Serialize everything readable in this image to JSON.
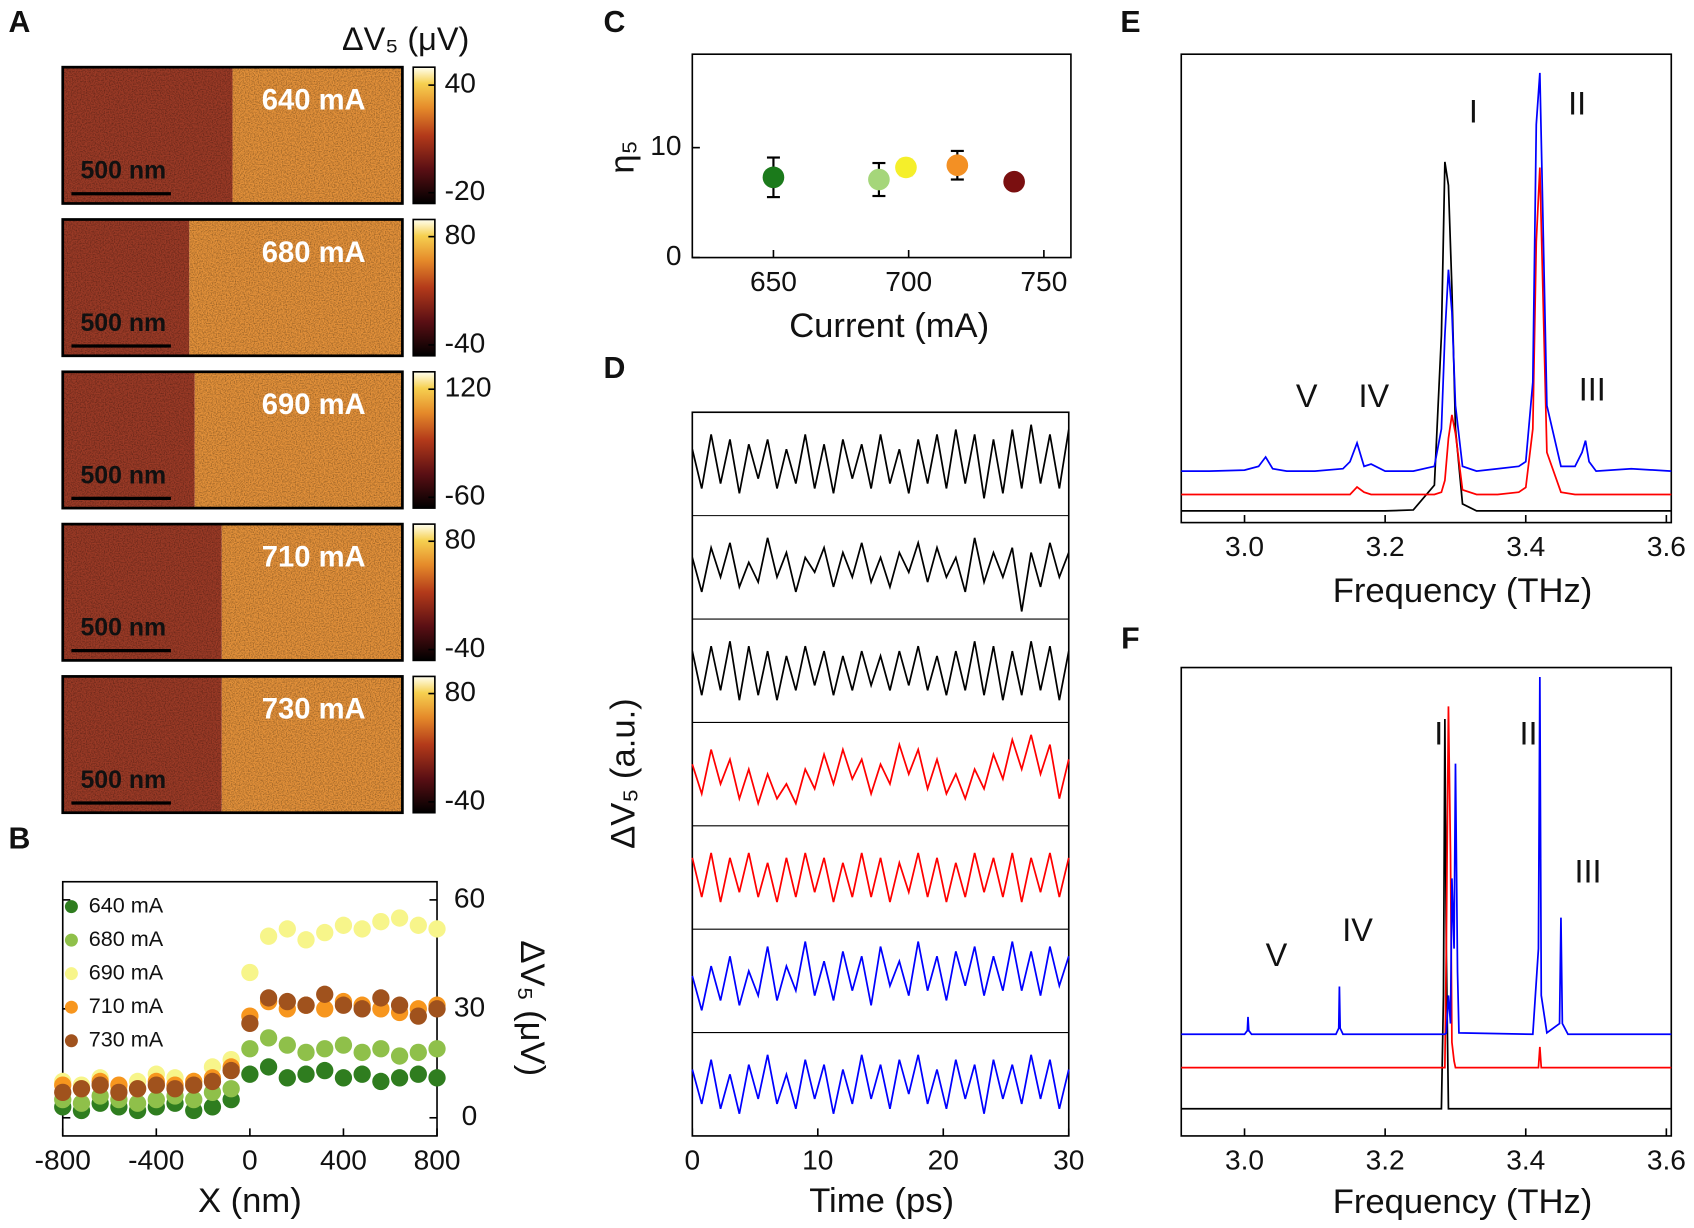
{
  "chart_data": [
    {
      "panel": "A",
      "type": "image",
      "colorbar_title": "ΔV₅ (μV)",
      "maps": [
        {
          "label": "640 mA",
          "scale_bar": "500 nm",
          "clim": [
            -26,
            50
          ],
          "cticks": [
            -20,
            40
          ]
        },
        {
          "label": "680 mA",
          "scale_bar": "500 nm",
          "clim": [
            -52,
            99
          ],
          "cticks": [
            -40,
            80
          ]
        },
        {
          "label": "690 mA",
          "scale_bar": "500 nm",
          "clim": [
            -78,
            149
          ],
          "cticks": [
            -60,
            120
          ]
        },
        {
          "label": "710 mA",
          "scale_bar": "500 nm",
          "clim": [
            -52,
            99
          ],
          "cticks": [
            -40,
            80
          ]
        },
        {
          "label": "730 mA",
          "scale_bar": "500 nm",
          "clim": [
            -52,
            99
          ],
          "cticks": [
            -40,
            80
          ]
        }
      ]
    },
    {
      "panel": "B",
      "type": "scatter",
      "xlabel": "X (nm)",
      "ylabel": "ΔV₅ (μV)",
      "x": [
        -800,
        -720,
        -640,
        -560,
        -480,
        -400,
        -320,
        -240,
        -160,
        -80,
        0,
        80,
        160,
        240,
        320,
        400,
        480,
        560,
        640,
        720,
        800
      ],
      "series": [
        {
          "name": "640 mA",
          "color": "#2f7d1f",
          "values": [
            3,
            2,
            4,
            3,
            2,
            3,
            4,
            2,
            3,
            5,
            12,
            14,
            11,
            12,
            13,
            11,
            12,
            10,
            11,
            12,
            11
          ]
        },
        {
          "name": "680 mA",
          "color": "#8fc04a",
          "values": [
            5,
            4,
            6,
            5,
            4,
            5,
            6,
            5,
            7,
            8,
            19,
            22,
            20,
            18,
            19,
            20,
            18,
            19,
            17,
            18,
            19
          ]
        },
        {
          "name": "690 mA",
          "color": "#f7f58a",
          "values": [
            10,
            9,
            11,
            8,
            10,
            12,
            11,
            10,
            14,
            16,
            40,
            50,
            52,
            49,
            51,
            53,
            52,
            54,
            55,
            53,
            52
          ]
        },
        {
          "name": "710 mA",
          "color": "#f7961e",
          "values": [
            9,
            8,
            10,
            9,
            8,
            10,
            9,
            10,
            11,
            14,
            28,
            32,
            30,
            31,
            30,
            32,
            31,
            30,
            29,
            30,
            31
          ]
        },
        {
          "name": "730 mA",
          "color": "#a0521d",
          "values": [
            7,
            8,
            9,
            7,
            8,
            9,
            8,
            9,
            10,
            13,
            26,
            33,
            32,
            31,
            34,
            31,
            30,
            33,
            31,
            28,
            30
          ]
        }
      ],
      "xlim": [
        -800,
        800
      ],
      "xticks": [
        -800,
        -400,
        0,
        400,
        800
      ],
      "ylim": [
        -5,
        65
      ],
      "yticks": [
        0,
        30,
        60
      ],
      "y_axis_side": "right",
      "legend": "upper left"
    },
    {
      "panel": "C",
      "type": "errorbar",
      "xlabel": "Current (mA)",
      "ylabel": "η₅",
      "x": [
        650,
        689,
        699,
        718,
        739
      ],
      "values": [
        7.3,
        7.1,
        8.2,
        8.4,
        6.9
      ],
      "errors": [
        1.8,
        1.5,
        0.7,
        1.3,
        0.5
      ],
      "colors": [
        "#1b7a1b",
        "#a5d67a",
        "#f5ef2a",
        "#f39024",
        "#7a0f10"
      ],
      "xlim": [
        620,
        760
      ],
      "xticks": [
        650,
        700,
        750
      ],
      "ylim": [
        0,
        18.5
      ],
      "yticks": [
        0,
        10
      ]
    },
    {
      "panel": "D",
      "type": "strips",
      "xlabel": "Time (ps)",
      "ylabel": "ΔV₅ (a.u.)",
      "x": [
        0,
        0.75,
        1.5,
        2.25,
        3,
        3.75,
        4.5,
        5.25,
        6,
        6.75,
        7.5,
        8.25,
        9,
        9.75,
        10.5,
        11.25,
        12,
        12.75,
        13.5,
        14.25,
        15,
        15.75,
        16.5,
        17.25,
        18,
        18.75,
        19.5,
        20.25,
        21,
        21.75,
        22.5,
        23.25,
        24,
        24.75,
        25.5,
        26.25,
        27,
        27.75,
        28.5,
        29.25,
        30
      ],
      "xlim": [
        0,
        30
      ],
      "xticks": [
        0,
        10,
        20,
        30
      ],
      "ylim": [
        -1,
        1
      ],
      "series": [
        {
          "color": "#000000",
          "values": [
            0.3,
            -0.5,
            0.6,
            -0.4,
            0.5,
            -0.6,
            0.4,
            -0.3,
            0.5,
            -0.5,
            0.3,
            -0.4,
            0.6,
            -0.5,
            0.4,
            -0.6,
            0.5,
            -0.3,
            0.4,
            -0.5,
            0.6,
            -0.4,
            0.3,
            -0.6,
            0.5,
            -0.4,
            0.6,
            -0.5,
            0.7,
            -0.4,
            0.6,
            -0.7,
            0.5,
            -0.6,
            0.7,
            -0.5,
            0.8,
            -0.4,
            0.6,
            -0.5,
            0.7
          ]
        },
        {
          "color": "#000000",
          "values": [
            0.2,
            -0.5,
            0.4,
            -0.2,
            0.5,
            -0.4,
            0.1,
            -0.3,
            0.6,
            -0.2,
            0.3,
            -0.5,
            0.2,
            -0.1,
            0.4,
            -0.4,
            0.3,
            -0.2,
            0.5,
            -0.3,
            0.2,
            -0.4,
            0.3,
            -0.1,
            0.5,
            -0.3,
            0.4,
            -0.2,
            0.2,
            -0.5,
            0.6,
            -0.3,
            0.3,
            -0.2,
            0.4,
            -0.9,
            0.3,
            -0.4,
            0.5,
            -0.2,
            0.3
          ]
        },
        {
          "color": "#000000",
          "values": [
            0.4,
            -0.5,
            0.5,
            -0.4,
            0.6,
            -0.6,
            0.5,
            -0.5,
            0.4,
            -0.6,
            0.3,
            -0.4,
            0.5,
            -0.3,
            0.4,
            -0.5,
            0.3,
            -0.4,
            0.4,
            -0.3,
            0.3,
            -0.4,
            0.4,
            -0.3,
            0.5,
            -0.4,
            0.3,
            -0.5,
            0.4,
            -0.4,
            0.6,
            -0.5,
            0.5,
            -0.6,
            0.4,
            -0.5,
            0.6,
            -0.4,
            0.5,
            -0.6,
            0.4
          ]
        },
        {
          "color": "#ff0000",
          "values": [
            0.2,
            -0.4,
            0.5,
            -0.2,
            0.3,
            -0.5,
            0.1,
            -0.6,
            0.0,
            -0.5,
            -0.2,
            -0.6,
            0.1,
            -0.3,
            0.4,
            -0.2,
            0.5,
            -0.1,
            0.3,
            -0.4,
            0.2,
            -0.2,
            0.6,
            0.0,
            0.5,
            -0.3,
            0.3,
            -0.4,
            0.0,
            -0.5,
            0.1,
            -0.3,
            0.4,
            -0.1,
            0.7,
            0.1,
            0.8,
            0.0,
            0.6,
            -0.5,
            0.3
          ]
        },
        {
          "color": "#ff0000",
          "values": [
            0.4,
            -0.4,
            0.5,
            -0.5,
            0.4,
            -0.3,
            0.5,
            -0.4,
            0.3,
            -0.5,
            0.4,
            -0.4,
            0.5,
            -0.3,
            0.4,
            -0.5,
            0.3,
            -0.4,
            0.5,
            -0.4,
            0.4,
            -0.5,
            0.3,
            -0.3,
            0.5,
            -0.4,
            0.4,
            -0.5,
            0.3,
            -0.4,
            0.5,
            -0.3,
            0.4,
            -0.4,
            0.5,
            -0.5,
            0.4,
            -0.3,
            0.5,
            -0.4,
            0.4
          ]
        },
        {
          "color": "#0000ff",
          "values": [
            0.1,
            -0.6,
            0.3,
            -0.4,
            0.5,
            -0.5,
            0.2,
            -0.3,
            0.7,
            -0.4,
            0.3,
            -0.2,
            0.8,
            -0.3,
            0.4,
            -0.4,
            0.6,
            -0.2,
            0.5,
            -0.5,
            0.7,
            -0.1,
            0.4,
            -0.3,
            0.8,
            -0.2,
            0.5,
            -0.4,
            0.6,
            -0.1,
            0.7,
            -0.3,
            0.5,
            -0.2,
            0.8,
            -0.2,
            0.6,
            -0.3,
            0.7,
            -0.1,
            0.5
          ]
        },
        {
          "color": "#0000ff",
          "values": [
            0.3,
            -0.4,
            0.5,
            -0.5,
            0.2,
            -0.6,
            0.4,
            -0.3,
            0.6,
            -0.4,
            0.2,
            -0.5,
            0.5,
            -0.3,
            0.4,
            -0.6,
            0.3,
            -0.4,
            0.6,
            -0.3,
            0.4,
            -0.5,
            0.5,
            -0.2,
            0.6,
            -0.4,
            0.3,
            -0.5,
            0.5,
            -0.3,
            0.4,
            -0.6,
            0.5,
            -0.3,
            0.4,
            -0.4,
            0.6,
            -0.3,
            0.5,
            -0.5,
            0.3
          ]
        }
      ]
    },
    {
      "panel": "E",
      "type": "line",
      "xlabel": "Frequency (THz)",
      "x": [
        2.91,
        2.95,
        3.0,
        3.02,
        3.03,
        3.04,
        3.06,
        3.1,
        3.14,
        3.15,
        3.16,
        3.17,
        3.18,
        3.2,
        3.24,
        3.27,
        3.28,
        3.285,
        3.29,
        3.295,
        3.3,
        3.31,
        3.33,
        3.36,
        3.39,
        3.4,
        3.41,
        3.415,
        3.42,
        3.43,
        3.45,
        3.47,
        3.48,
        3.485,
        3.49,
        3.5,
        3.55,
        3.607
      ],
      "xlim": [
        2.91,
        3.607
      ],
      "xticks": [
        {
          "value": 3,
          "label": "3.0"
        },
        3.2,
        3.4,
        3.6
      ],
      "ylim": [
        0,
        100
      ],
      "series": [
        {
          "color": "#000000",
          "values": [
            2.5,
            2.5,
            2.5,
            2.5,
            2.5,
            2.5,
            2.5,
            2.5,
            2.5,
            2.5,
            2.5,
            2.5,
            2.5,
            2.5,
            2.7,
            8,
            40,
            77,
            72,
            50,
            20,
            4,
            2.5,
            2.5,
            2.5,
            2.5,
            2.5,
            2.5,
            2.5,
            2.5,
            2.5,
            2.5,
            2.5,
            2.5,
            2.5,
            2.5,
            2.5,
            2.5
          ]
        },
        {
          "color": "#ff0000",
          "values": [
            6,
            6,
            6,
            6,
            6,
            6,
            6,
            6,
            6,
            6,
            7.6,
            6.5,
            6,
            6,
            6,
            6,
            6.5,
            9,
            18,
            23,
            19,
            7,
            6,
            6,
            6.5,
            7.5,
            20,
            60,
            75.8,
            15,
            6.5,
            6,
            6,
            6,
            6,
            6,
            6,
            6
          ]
        },
        {
          "color": "#0000ff",
          "values": [
            11,
            11,
            11.2,
            12,
            14,
            11.5,
            11,
            11,
            11.5,
            13,
            17,
            12,
            12.5,
            11,
            11,
            12,
            20,
            40,
            54,
            45,
            25,
            12,
            11,
            11.5,
            12,
            13,
            30,
            85,
            96,
            25,
            12,
            12,
            15,
            17.5,
            13,
            11,
            11.5,
            11
          ]
        }
      ],
      "annotations": [
        "V",
        "IV",
        "I",
        "II",
        "III"
      ]
    },
    {
      "panel": "F",
      "type": "line",
      "xlabel": "Frequency (THz)",
      "x": [
        2.91,
        3.0,
        3.004,
        3.005,
        3.006,
        3.01,
        3.13,
        3.134,
        3.135,
        3.136,
        3.14,
        3.28,
        3.283,
        3.285,
        3.287,
        3.29,
        3.293,
        3.295,
        3.298,
        3.3,
        3.303,
        3.305,
        3.41,
        3.418,
        3.42,
        3.422,
        3.43,
        3.448,
        3.45,
        3.452,
        3.46,
        3.607
      ],
      "xlim": [
        2.91,
        3.607
      ],
      "xticks": [
        {
          "value": 3,
          "label": "3.0"
        },
        3.2,
        3.4,
        3.6
      ],
      "ylim": [
        0,
        100
      ],
      "series": [
        {
          "color": "#000000",
          "values": [
            5.8,
            5.8,
            5.8,
            5.8,
            5.8,
            5.8,
            5.8,
            5.8,
            5.8,
            5.8,
            5.8,
            5.8,
            30,
            89,
            40,
            5.8,
            5.8,
            5.8,
            5.8,
            5.8,
            5.8,
            5.8,
            5.8,
            5.8,
            5.8,
            5.8,
            5.8,
            5.8,
            5.8,
            5.8,
            5.8,
            5.8
          ]
        },
        {
          "color": "#ff0000",
          "values": [
            14.6,
            14.6,
            14.6,
            14.6,
            14.6,
            14.6,
            14.6,
            14.6,
            14.6,
            14.6,
            14.6,
            14.6,
            14.6,
            14.6,
            40,
            91.7,
            60,
            20,
            16,
            14.6,
            14.6,
            14.6,
            14.6,
            14.6,
            19,
            14.6,
            14.6,
            14.6,
            14.6,
            14.6,
            14.6,
            14.6
          ]
        },
        {
          "color": "#0000ff",
          "values": [
            21.7,
            21.7,
            22.5,
            25.4,
            22.5,
            21.7,
            21.7,
            23,
            31.9,
            23,
            21.7,
            21.7,
            21.7,
            21.7,
            22,
            30,
            24,
            55,
            40,
            79.5,
            35,
            22,
            21.7,
            40,
            98,
            30,
            22,
            24,
            46.6,
            24,
            21.7,
            21.7
          ]
        }
      ],
      "annotations": [
        "V",
        "IV",
        "I",
        "II",
        "III"
      ]
    }
  ]
}
